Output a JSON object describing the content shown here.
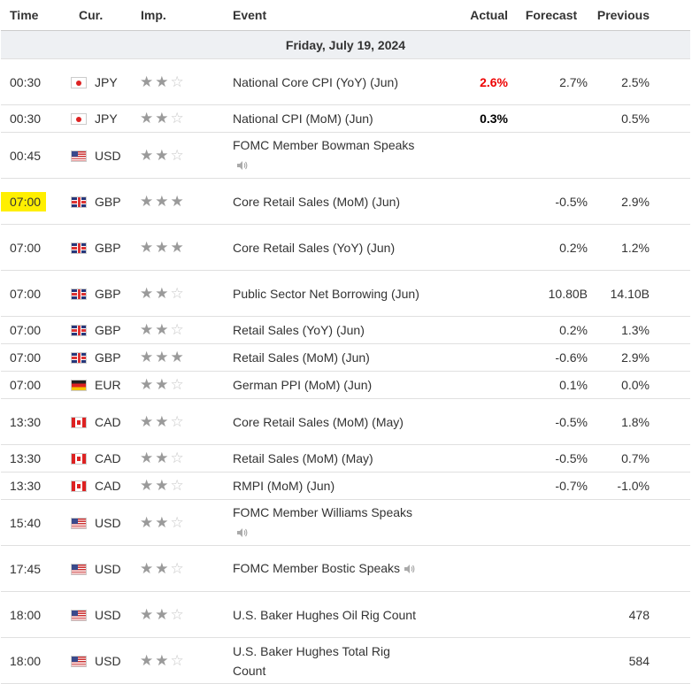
{
  "headers": {
    "time": "Time",
    "cur": "Cur.",
    "imp": "Imp.",
    "event": "Event",
    "actual": "Actual",
    "forecast": "Forecast",
    "previous": "Previous"
  },
  "day_label": "Friday, July 19, 2024",
  "colors": {
    "highlight": "#ffef00",
    "actual_negative": "#e00000",
    "star_on": "#9a9a9a",
    "star_off": "#c8c8c8"
  },
  "events": [
    {
      "time": "00:30",
      "flag": "jp-flag-icon",
      "cur": "JPY",
      "stars": 2,
      "event": "National Core CPI (YoY) (Jun)",
      "speech": false,
      "actual": "2.6%",
      "actual_style": "red",
      "forecast": "2.7%",
      "previous": "2.5%"
    },
    {
      "time": "00:30",
      "flag": "jp-flag-icon",
      "cur": "JPY",
      "stars": 2,
      "event": "National CPI (MoM) (Jun)",
      "speech": false,
      "actual": "0.3%",
      "actual_style": "bold",
      "forecast": "",
      "previous": "0.5%"
    },
    {
      "time": "00:45",
      "flag": "us-flag-icon",
      "cur": "USD",
      "stars": 2,
      "event": "FOMC Member Bowman Speaks",
      "speech": true,
      "actual": "",
      "actual_style": "",
      "forecast": "",
      "previous": ""
    },
    {
      "time": "07:00",
      "flag": "gb-flag-icon",
      "cur": "GBP",
      "stars": 3,
      "event": "Core Retail Sales (MoM) (Jun)",
      "speech": false,
      "actual": "",
      "actual_style": "",
      "forecast": "-0.5%",
      "previous": "2.9%",
      "highlight": true
    },
    {
      "time": "07:00",
      "flag": "gb-flag-icon",
      "cur": "GBP",
      "stars": 3,
      "event": "Core Retail Sales (YoY) (Jun)",
      "speech": false,
      "actual": "",
      "actual_style": "",
      "forecast": "0.2%",
      "previous": "1.2%"
    },
    {
      "time": "07:00",
      "flag": "gb-flag-icon",
      "cur": "GBP",
      "stars": 2,
      "event": "Public Sector Net Borrowing (Jun)",
      "speech": false,
      "actual": "",
      "actual_style": "",
      "forecast": "10.80B",
      "previous": "14.10B"
    },
    {
      "time": "07:00",
      "flag": "gb-flag-icon",
      "cur": "GBP",
      "stars": 2,
      "event": "Retail Sales (YoY) (Jun)",
      "speech": false,
      "actual": "",
      "actual_style": "",
      "forecast": "0.2%",
      "previous": "1.3%"
    },
    {
      "time": "07:00",
      "flag": "gb-flag-icon",
      "cur": "GBP",
      "stars": 3,
      "event": "Retail Sales (MoM) (Jun)",
      "speech": false,
      "actual": "",
      "actual_style": "",
      "forecast": "-0.6%",
      "previous": "2.9%"
    },
    {
      "time": "07:00",
      "flag": "de-flag-icon",
      "cur": "EUR",
      "stars": 2,
      "event": "German PPI (MoM) (Jun)",
      "speech": false,
      "actual": "",
      "actual_style": "",
      "forecast": "0.1%",
      "previous": "0.0%"
    },
    {
      "time": "13:30",
      "flag": "ca-flag-icon",
      "cur": "CAD",
      "stars": 2,
      "event": "Core Retail Sales (MoM) (May)",
      "speech": false,
      "actual": "",
      "actual_style": "",
      "forecast": "-0.5%",
      "previous": "1.8%"
    },
    {
      "time": "13:30",
      "flag": "ca-flag-icon",
      "cur": "CAD",
      "stars": 2,
      "event": "Retail Sales (MoM) (May)",
      "speech": false,
      "actual": "",
      "actual_style": "",
      "forecast": "-0.5%",
      "previous": "0.7%"
    },
    {
      "time": "13:30",
      "flag": "ca-flag-icon",
      "cur": "CAD",
      "stars": 2,
      "event": "RMPI (MoM) (Jun)",
      "speech": false,
      "actual": "",
      "actual_style": "",
      "forecast": "-0.7%",
      "previous": "-1.0%"
    },
    {
      "time": "15:40",
      "flag": "us-flag-icon",
      "cur": "USD",
      "stars": 2,
      "event": "FOMC Member Williams Speaks",
      "speech": true,
      "actual": "",
      "actual_style": "",
      "forecast": "",
      "previous": ""
    },
    {
      "time": "17:45",
      "flag": "us-flag-icon",
      "cur": "USD",
      "stars": 2,
      "event": "FOMC Member Bostic Speaks",
      "speech": true,
      "actual": "",
      "actual_style": "",
      "forecast": "",
      "previous": ""
    },
    {
      "time": "18:00",
      "flag": "us-flag-icon",
      "cur": "USD",
      "stars": 2,
      "event": "U.S. Baker Hughes Oil Rig Count",
      "speech": false,
      "actual": "",
      "actual_style": "",
      "forecast": "",
      "previous": "478"
    },
    {
      "time": "18:00",
      "flag": "us-flag-icon",
      "cur": "USD",
      "stars": 2,
      "event": "U.S. Baker Hughes Total Rig Count",
      "speech": false,
      "actual": "",
      "actual_style": "",
      "forecast": "",
      "previous": "584"
    }
  ]
}
